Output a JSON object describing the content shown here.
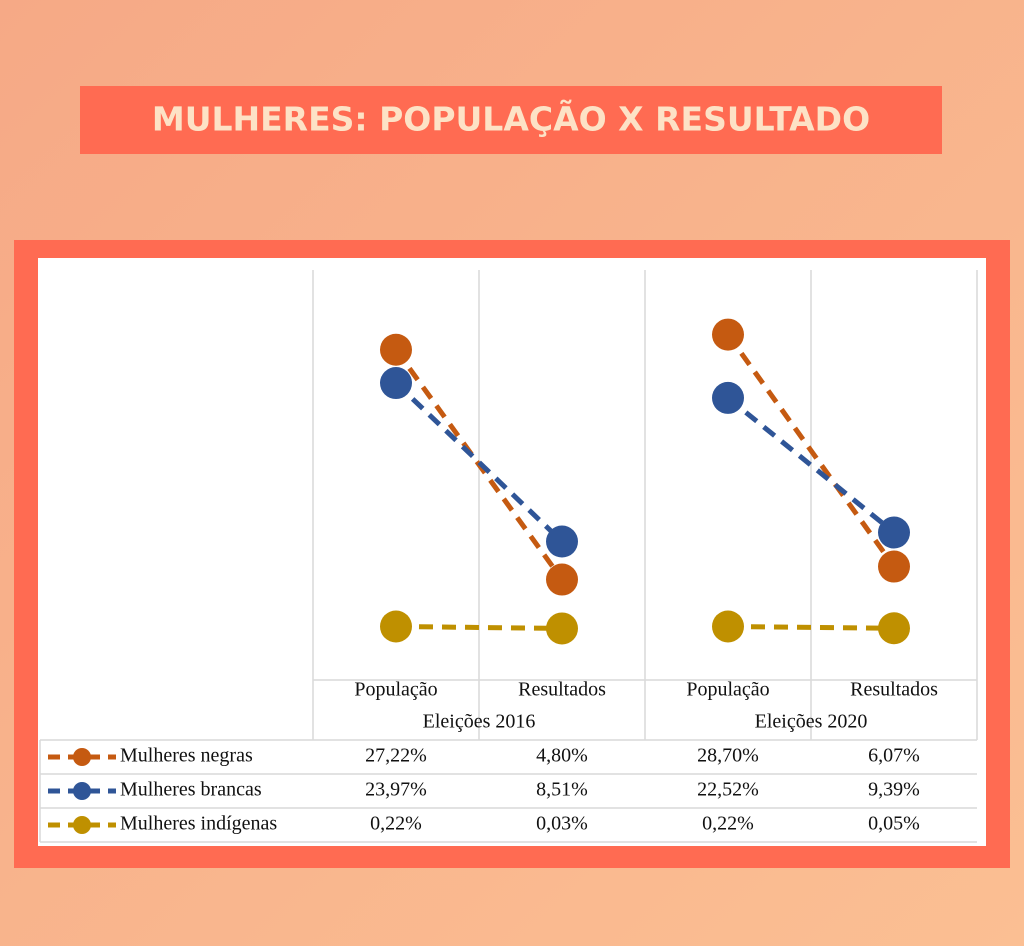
{
  "chart_data": {
    "type": "line",
    "title": "MULHERES: POPULAÇÃO X RESULTADO",
    "groups": [
      "Eleições 2016",
      "Eleições 2020"
    ],
    "categories": [
      "População",
      "Resultados",
      "População",
      "Resultados"
    ],
    "ylim": [
      -5,
      35
    ],
    "series": [
      {
        "name": "Mulheres negras",
        "color": "#c55a11",
        "values": [
          27.22,
          4.8,
          28.7,
          6.07
        ],
        "value_labels": [
          "27,22%",
          "4,80%",
          "28,70%",
          "6,07%"
        ]
      },
      {
        "name": "Mulheres brancas",
        "color": "#2f5597",
        "values": [
          23.97,
          8.51,
          22.52,
          9.39
        ],
        "value_labels": [
          "23,97%",
          "8,51%",
          "22,52%",
          "9,39%"
        ]
      },
      {
        "name": "Mulheres indígenas",
        "color": "#bf9000",
        "values": [
          0.22,
          0.03,
          0.22,
          0.05
        ],
        "value_labels": [
          "0,22%",
          "0,03%",
          "0,22%",
          "0,05%"
        ]
      }
    ]
  }
}
